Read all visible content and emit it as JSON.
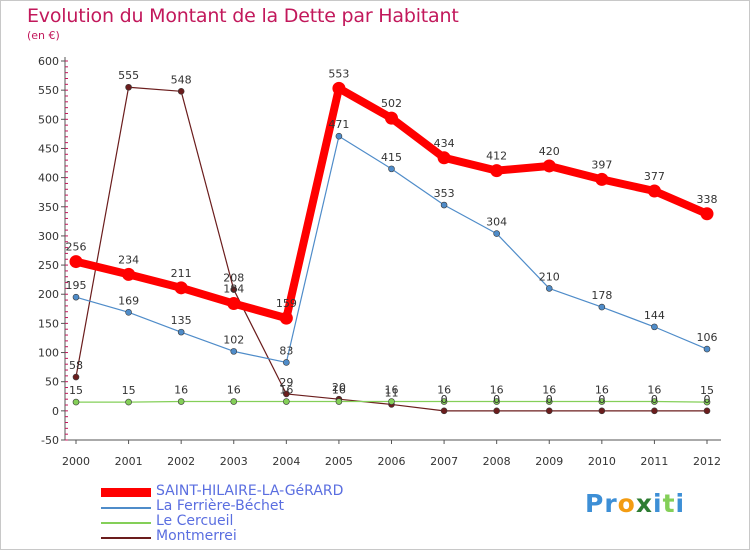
{
  "header": {
    "title": "Evolution du Montant de la Dette par Habitant",
    "subtitle": "(en €)"
  },
  "chart_data": {
    "type": "line",
    "title": "Evolution du Montant de la Dette par Habitant",
    "subtitle": "(en €)",
    "xlabel": "",
    "ylabel": "",
    "categories": [
      "2000",
      "2001",
      "2002",
      "2003",
      "2004",
      "2005",
      "2006",
      "2007",
      "2008",
      "2009",
      "2010",
      "2011",
      "2012"
    ],
    "yticks": [
      -50,
      0,
      50,
      100,
      150,
      200,
      250,
      300,
      350,
      400,
      450,
      500,
      550,
      600
    ],
    "ylim": [
      -50,
      600
    ],
    "grid": false,
    "legend": "bottom-left",
    "series": [
      {
        "name": "SAINT-HILAIRE-LA-GéRARD",
        "color": "#ff0000",
        "values": [
          256,
          234,
          211,
          184,
          159,
          553,
          502,
          434,
          412,
          420,
          397,
          377,
          338
        ]
      },
      {
        "name": "La Ferrière-Béchet",
        "color": "#4f8cc9",
        "values": [
          195,
          169,
          135,
          102,
          83,
          471,
          415,
          353,
          304,
          210,
          178,
          144,
          106
        ]
      },
      {
        "name": "Le Cercueil",
        "color": "#84cf58",
        "values": [
          15,
          15,
          16,
          16,
          16,
          16,
          16,
          16,
          16,
          16,
          16,
          16,
          15
        ]
      },
      {
        "name": "Montmerrei",
        "color": "#6b1d1d",
        "values": [
          58,
          555,
          548,
          208,
          29,
          20,
          11,
          0,
          0,
          0,
          0,
          0,
          0
        ]
      }
    ]
  },
  "legend": {
    "items": [
      {
        "label": "SAINT-HILAIRE-LA-GéRARD"
      },
      {
        "label": "La Ferrière-Béchet"
      },
      {
        "label": "Le Cercueil"
      },
      {
        "label": "Montmerrei"
      }
    ]
  },
  "branding": {
    "logo_parts": [
      "Pr",
      "o",
      "x",
      "i",
      "t",
      "i"
    ],
    "logo_colors": [
      "#3d8fd6",
      "#f39c12",
      "#2e7d32",
      "#3d8fd6",
      "#84cf58",
      "#3d8fd6"
    ]
  }
}
